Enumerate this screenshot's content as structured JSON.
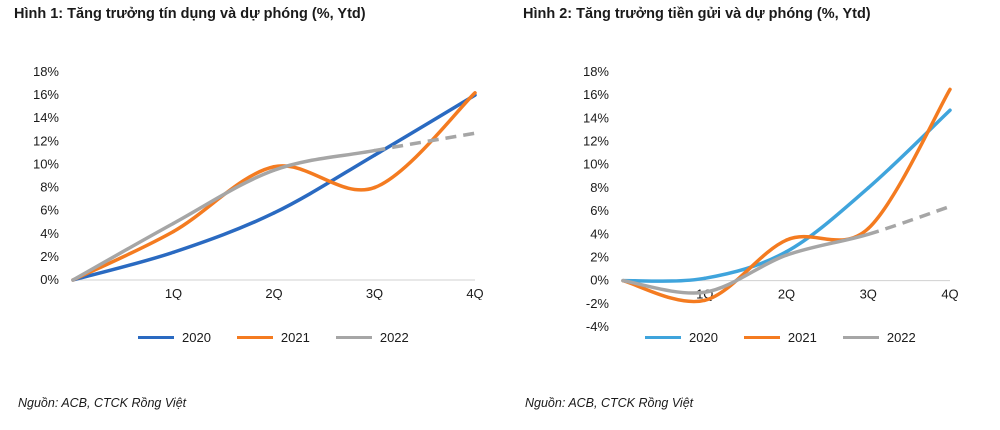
{
  "chart_data": [
    {
      "type": "line",
      "title": "Hình 1: Tăng trưởng tín dụng và dự phóng (%, Ytd)",
      "categories": [
        "",
        "1Q",
        "2Q",
        "3Q",
        "4Q"
      ],
      "ylim": [
        0,
        18
      ],
      "ystep": 2,
      "yticks": [
        "0%",
        "2%",
        "4%",
        "6%",
        "8%",
        "10%",
        "12%",
        "14%",
        "16%",
        "18%"
      ],
      "grid": false,
      "legend": "bottom",
      "series": [
        {
          "name": "2020",
          "color": "#2a6ac1",
          "dashed": [
            false,
            false,
            false,
            false
          ],
          "values": [
            0,
            2.4,
            5.8,
            10.8,
            16.0
          ]
        },
        {
          "name": "2021",
          "color": "#f47b20",
          "dashed": [
            false,
            false,
            false,
            false
          ],
          "values": [
            0,
            4.2,
            9.8,
            8.0,
            16.2
          ]
        },
        {
          "name": "2022",
          "color": "#a6a6a6",
          "dashed": [
            false,
            false,
            false,
            true
          ],
          "values": [
            0,
            4.9,
            9.5,
            11.2,
            12.7
          ]
        }
      ],
      "source": "Nguồn: ACB, CTCK Rồng Việt"
    },
    {
      "type": "line",
      "title": "Hình 2: Tăng trưởng tiền gửi và dự phóng (%, Ytd)",
      "categories": [
        "",
        "1Q",
        "2Q",
        "3Q",
        "4Q"
      ],
      "ylim": [
        -4,
        18
      ],
      "ystep": 2,
      "yticks": [
        "-4%",
        "-2%",
        "0%",
        "2%",
        "4%",
        "6%",
        "8%",
        "10%",
        "12%",
        "14%",
        "16%",
        "18%"
      ],
      "grid": false,
      "legend": "bottom",
      "series": [
        {
          "name": "2020",
          "color": "#3fa4dc",
          "dashed": [
            false,
            false,
            false,
            false
          ],
          "values": [
            0,
            0.2,
            2.5,
            8.0,
            14.7
          ]
        },
        {
          "name": "2021",
          "color": "#f47b20",
          "dashed": [
            false,
            false,
            false,
            false
          ],
          "values": [
            0,
            -1.7,
            3.5,
            4.5,
            16.5
          ]
        },
        {
          "name": "2022",
          "color": "#a6a6a6",
          "dashed": [
            false,
            false,
            false,
            true
          ],
          "values": [
            0,
            -1.0,
            2.2,
            4.0,
            6.4
          ]
        }
      ],
      "source": "Nguồn: ACB, CTCK Rồng Việt"
    }
  ]
}
